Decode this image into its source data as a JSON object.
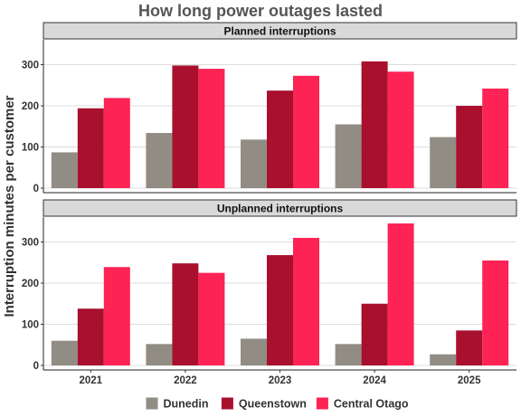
{
  "chart_data": {
    "type": "bar",
    "title": "How long power outages lasted",
    "ylabel": "Interruption minutes per customer",
    "xlabel": "",
    "categories": [
      "2021",
      "2022",
      "2023",
      "2024",
      "2025"
    ],
    "ylim": [
      0,
      370
    ],
    "yticks": [
      0,
      100,
      200,
      300
    ],
    "grid": true,
    "legend_position": "bottom",
    "colors": {
      "Dunedin": "#918d84",
      "Queenstown": "#a8102e",
      "Central Otago": "#fe2355"
    },
    "panels": [
      {
        "title": "Planned interruptions",
        "series": [
          {
            "name": "Dunedin",
            "values": [
              87,
              134,
              118,
              155,
              124
            ]
          },
          {
            "name": "Queenstown",
            "values": [
              194,
              298,
              237,
              308,
              200
            ]
          },
          {
            "name": "Central Otago",
            "values": [
              219,
              290,
              273,
              283,
              242
            ]
          }
        ]
      },
      {
        "title": "Unplanned interruptions",
        "series": [
          {
            "name": "Dunedin",
            "values": [
              60,
              52,
              65,
              52,
              27
            ]
          },
          {
            "name": "Queenstown",
            "values": [
              138,
              248,
              268,
              150,
              85
            ]
          },
          {
            "name": "Central Otago",
            "values": [
              239,
              225,
              310,
              345,
              255
            ]
          }
        ]
      }
    ]
  }
}
